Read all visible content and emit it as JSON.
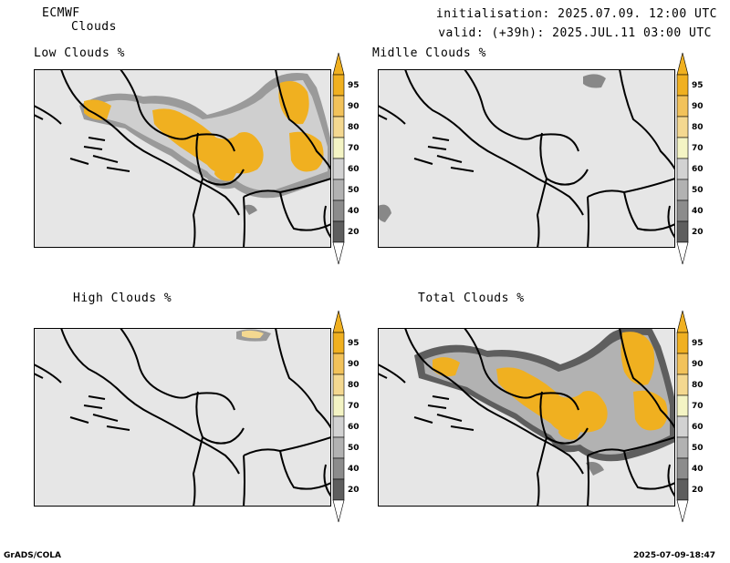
{
  "header": {
    "model": "ECMWF",
    "product": "Clouds",
    "init_line": "initialisation: 2025.07.09. 12:00 UTC",
    "valid_line": "valid: (+39h): 2025.JUL.11 03:00 UTC"
  },
  "panels": [
    {
      "id": "low",
      "title": "Low Clouds %"
    },
    {
      "id": "mid",
      "title": "Midlle Clouds %"
    },
    {
      "id": "high",
      "title": "High Clouds %"
    },
    {
      "id": "total",
      "title": "Total Clouds %"
    }
  ],
  "legend": {
    "levels": [
      "95",
      "90",
      "80",
      "70",
      "60",
      "50",
      "40",
      "20"
    ],
    "colors": [
      "#f0b020",
      "#f2c25a",
      "#f4d890",
      "#f4f4c4",
      "#d2d2d2",
      "#b2b2b2",
      "#8c8c8c",
      "#5e5e5e"
    ],
    "overflow_top": "#f0b020",
    "underflow_bottom": "#ffffff"
  },
  "footer": {
    "left": "GrADS/COLA",
    "right": "2025-07-09-18:47"
  }
}
